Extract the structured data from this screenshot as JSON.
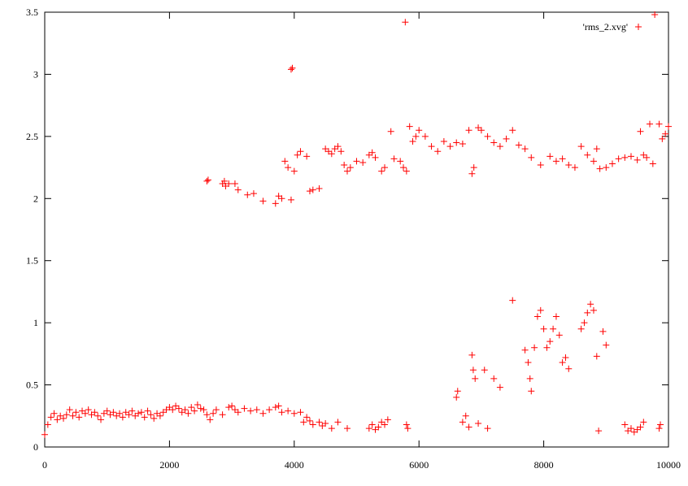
{
  "chart_data": {
    "type": "scatter",
    "xlim": [
      0,
      10000
    ],
    "ylim": [
      0,
      3.5
    ],
    "xticks": [
      0,
      2000,
      4000,
      6000,
      8000,
      10000
    ],
    "yticks": [
      0,
      0.5,
      1,
      1.5,
      2,
      2.5,
      3,
      3.5
    ],
    "legend": "top-right",
    "series": [
      {
        "name": "'rms_2.xvg'",
        "color": "#ff0000",
        "x": [
          0,
          50,
          100,
          150,
          200,
          250,
          300,
          350,
          400,
          450,
          500,
          550,
          600,
          650,
          700,
          750,
          800,
          850,
          900,
          950,
          1000,
          1050,
          1100,
          1150,
          1200,
          1250,
          1300,
          1350,
          1400,
          1450,
          1500,
          1550,
          1600,
          1650,
          1700,
          1750,
          1800,
          1850,
          1900,
          1950,
          2000,
          2050,
          2100,
          2150,
          2200,
          2250,
          2300,
          2350,
          2400,
          2450,
          2500,
          2550,
          2600,
          2650,
          2700,
          2750,
          2850,
          2950,
          3000,
          3050,
          3100,
          3200,
          3300,
          3400,
          3500,
          3600,
          3700,
          3750,
          3800,
          3900,
          4000,
          4100,
          4150,
          4200,
          4250,
          4300,
          4400,
          4450,
          4500,
          4600,
          4700,
          4850,
          5200,
          5250,
          5300,
          5350,
          5400,
          5450,
          5500,
          5800,
          5820,
          2600,
          2620,
          2850,
          2880,
          2900,
          2950,
          3050,
          3100,
          3250,
          3350,
          3500,
          3700,
          3750,
          3800,
          3850,
          3900,
          3950,
          3950,
          3970,
          4000,
          4050,
          4100,
          4200,
          4250,
          4300,
          4400,
          4500,
          4550,
          4600,
          4650,
          4700,
          4750,
          4800,
          4850,
          4900,
          5000,
          5100,
          5200,
          5250,
          5300,
          5400,
          5450,
          5550,
          5600,
          5700,
          5750,
          5780,
          5800,
          5850,
          5900,
          5950,
          6000,
          6100,
          6200,
          6300,
          6400,
          6500,
          6600,
          6700,
          6800,
          6850,
          6880,
          6950,
          7000,
          7100,
          7200,
          7300,
          7400,
          7500,
          7600,
          7700,
          7800,
          7950,
          8100,
          8200,
          8300,
          8400,
          8500,
          8600,
          8700,
          8800,
          8850,
          8900,
          9000,
          9100,
          9200,
          9300,
          9400,
          9500,
          9550,
          9600,
          9650,
          9700,
          9750,
          9780,
          9850,
          9900,
          9950,
          10000,
          6600,
          6620,
          6700,
          6750,
          6800,
          6850,
          6870,
          6900,
          6950,
          7050,
          7100,
          7200,
          7300,
          7500,
          7700,
          7750,
          7780,
          7800,
          7850,
          7900,
          7950,
          8000,
          8050,
          8100,
          8150,
          8200,
          8250,
          8300,
          8350,
          8400,
          8600,
          8650,
          8700,
          8750,
          8800,
          8850,
          8880,
          8950,
          9000,
          9300,
          9350,
          9400,
          9450,
          9500,
          9550,
          9600,
          9850,
          9870
        ],
        "values": [
          0.1,
          0.18,
          0.24,
          0.27,
          0.22,
          0.25,
          0.23,
          0.26,
          0.3,
          0.25,
          0.28,
          0.24,
          0.29,
          0.27,
          0.3,
          0.26,
          0.28,
          0.25,
          0.22,
          0.27,
          0.29,
          0.26,
          0.28,
          0.25,
          0.27,
          0.24,
          0.28,
          0.26,
          0.29,
          0.25,
          0.27,
          0.28,
          0.24,
          0.29,
          0.26,
          0.23,
          0.27,
          0.25,
          0.28,
          0.3,
          0.32,
          0.3,
          0.33,
          0.31,
          0.28,
          0.3,
          0.27,
          0.32,
          0.29,
          0.34,
          0.31,
          0.3,
          0.26,
          0.22,
          0.27,
          0.3,
          0.26,
          0.32,
          0.33,
          0.3,
          0.28,
          0.31,
          0.29,
          0.3,
          0.27,
          0.3,
          0.32,
          0.33,
          0.28,
          0.29,
          0.27,
          0.28,
          0.2,
          0.24,
          0.21,
          0.18,
          0.2,
          0.17,
          0.19,
          0.15,
          0.2,
          0.15,
          0.15,
          0.18,
          0.14,
          0.16,
          0.2,
          0.18,
          0.22,
          0.18,
          0.15,
          2.14,
          2.15,
          2.12,
          2.14,
          2.1,
          2.12,
          2.12,
          2.07,
          2.03,
          2.04,
          1.98,
          1.96,
          2.02,
          2.0,
          2.3,
          2.25,
          1.99,
          3.04,
          3.05,
          2.22,
          2.35,
          2.38,
          2.34,
          2.06,
          2.07,
          2.08,
          2.4,
          2.38,
          2.36,
          2.4,
          2.42,
          2.38,
          2.27,
          2.22,
          2.25,
          2.3,
          2.29,
          2.35,
          2.37,
          2.33,
          2.22,
          2.25,
          2.54,
          2.32,
          2.3,
          2.25,
          3.42,
          2.22,
          2.58,
          2.46,
          2.5,
          2.55,
          2.5,
          2.42,
          2.38,
          2.46,
          2.42,
          2.45,
          2.44,
          2.55,
          2.2,
          2.25,
          2.57,
          2.55,
          2.5,
          2.45,
          2.42,
          2.48,
          2.55,
          2.43,
          2.4,
          2.33,
          2.27,
          2.34,
          2.3,
          2.32,
          2.27,
          2.25,
          2.42,
          2.35,
          2.3,
          2.4,
          2.24,
          2.25,
          2.28,
          2.32,
          2.33,
          2.34,
          2.31,
          2.54,
          2.35,
          2.33,
          2.6,
          2.28,
          3.48,
          2.6,
          2.48,
          2.52,
          2.58,
          0.4,
          0.45,
          0.2,
          0.25,
          0.16,
          0.74,
          0.62,
          0.55,
          0.19,
          0.62,
          0.15,
          0.55,
          0.48,
          1.18,
          0.78,
          0.68,
          0.55,
          0.45,
          0.8,
          1.05,
          1.1,
          0.95,
          0.8,
          0.85,
          0.95,
          1.05,
          0.9,
          0.68,
          0.72,
          0.63,
          0.95,
          1.0,
          1.08,
          1.15,
          1.1,
          0.73,
          0.13,
          0.93,
          0.82,
          0.18,
          0.13,
          0.15,
          0.12,
          0.14,
          0.16,
          0.2,
          0.15,
          0.18
        ]
      }
    ]
  }
}
